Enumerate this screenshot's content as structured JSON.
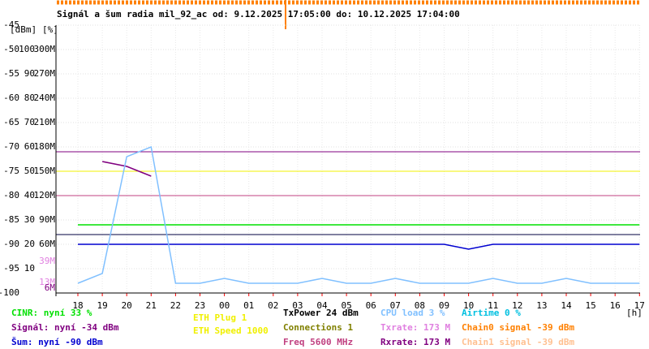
{
  "chart_data": {
    "type": "line",
    "title": "Signál a šum radia mil_92_ac od: 9.12.2025 17:05:00 do: 10.12.2025 17:04:00",
    "y_unit_labels": [
      "[dBm]",
      "[%]"
    ],
    "x_unit_label": "[h]",
    "categories": [
      "18",
      "19",
      "20",
      "21",
      "22",
      "23",
      "00",
      "01",
      "02",
      "03",
      "04",
      "05",
      "06",
      "07",
      "08",
      "09",
      "10",
      "11",
      "12",
      "13",
      "14",
      "15",
      "16",
      "17"
    ],
    "ylim": [
      -100,
      -45
    ],
    "yticks": [
      -45,
      -50,
      -55,
      -60,
      -65,
      -70,
      -75,
      -80,
      -85,
      -90,
      -95,
      -100
    ],
    "y2lim": [
      0,
      110
    ],
    "y2ticks": [
      100,
      90,
      80,
      70,
      60,
      50,
      40,
      30,
      20,
      10
    ],
    "y3lim": [
      0,
      330
    ],
    "y3ticks": [
      {
        "value": 300,
        "label": "300M"
      },
      {
        "value": 270,
        "label": "270M"
      },
      {
        "value": 240,
        "label": "240M"
      },
      {
        "value": 210,
        "label": "210M"
      },
      {
        "value": 180,
        "label": "180M"
      },
      {
        "value": 150,
        "label": "150M"
      },
      {
        "value": 120,
        "label": "120M"
      },
      {
        "value": 90,
        "label": "90M"
      },
      {
        "value": 60,
        "label": "60M"
      }
    ],
    "rate_markers": [
      {
        "value": 39,
        "label": "39M",
        "color": "#e080e0"
      },
      {
        "value": 13,
        "label": "13M",
        "color": "#e080e0"
      },
      {
        "value": 6,
        "label": "6M",
        "color": "#800080"
      }
    ],
    "reference_lines": [
      {
        "value": -71,
        "color": "#800080"
      },
      {
        "value": -75,
        "color": "#f0f000"
      },
      {
        "value": -80,
        "color": "#c04080"
      },
      {
        "value": -88,
        "color": "#000040"
      }
    ],
    "grid": true,
    "series": [
      {
        "name": "CINR: nyní 33 %",
        "color": "#00e000",
        "values": [
          -86,
          -86,
          -86,
          -86,
          -86,
          -86,
          -86,
          -86,
          -86,
          -86,
          -86,
          -86,
          -86,
          -86,
          -86,
          -86,
          -86,
          -86,
          -86,
          -86,
          -86,
          -86,
          -86,
          -86
        ]
      },
      {
        "name": "Signál: nyní -34 dBm",
        "color": "#800080",
        "values": [
          null,
          -73,
          -74,
          -76,
          null,
          null,
          null,
          null,
          null,
          null,
          null,
          null,
          null,
          null,
          null,
          null,
          null,
          null,
          null,
          null,
          null,
          null,
          null,
          null
        ]
      },
      {
        "name": "Šum: nyní -90 dBm",
        "color": "#0000d0",
        "values": [
          -90,
          -90,
          -90,
          -90,
          -90,
          -90,
          -90,
          -90,
          -90,
          -90,
          -90,
          -90,
          -90,
          -90,
          -90,
          -90,
          -91,
          -90,
          -90,
          -90,
          -90,
          -90,
          -90,
          -90
        ]
      },
      {
        "name": "CPU load 3 %",
        "color": "#80c0ff",
        "values": [
          -98,
          -96,
          -72,
          -70,
          -98,
          -98,
          -97,
          -98,
          -98,
          -98,
          -97,
          -98,
          -98,
          -97,
          -98,
          -98,
          -98,
          -97,
          -98,
          -98,
          -97,
          -98,
          -98,
          -98
        ]
      }
    ],
    "legend_extra": [
      {
        "text": "ETH Plug 1",
        "color": "#f0f000"
      },
      {
        "text": "ETH Speed 1000",
        "color": "#f0f000"
      },
      {
        "text": "TxPower 24 dBm",
        "color": "#000000"
      },
      {
        "text": "Connections 1",
        "color": "#808000"
      },
      {
        "text": "Freq 5600 MHz",
        "color": "#c04080"
      },
      {
        "text": "Txrate: 173 M",
        "color": "#e080e0"
      },
      {
        "text": "Rxrate: 173 M",
        "color": "#800080"
      },
      {
        "text": "Airtime 0 %",
        "color": "#00c0e0"
      },
      {
        "text": "Chain0 signal -39 dBm",
        "color": "#ff8000"
      },
      {
        "text": "Chain1 signal -39 dBm",
        "color": "#ffc090"
      }
    ]
  }
}
